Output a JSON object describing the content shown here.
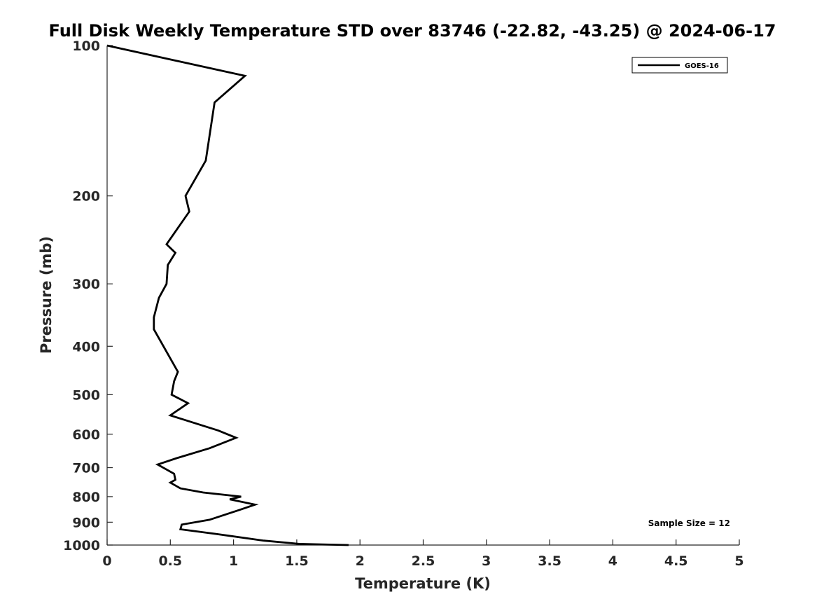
{
  "chart_data": {
    "type": "line",
    "title": "Full Disk Weekly Temperature STD over 83746 (-22.82, -43.25) @ 2024-06-17",
    "xlabel": "Temperature (K)",
    "ylabel": "Pressure (mb)",
    "xlim": [
      0,
      5
    ],
    "ylim": [
      100,
      1000
    ],
    "y_scale": "log",
    "y_reversed": true,
    "x_ticks": [
      "0",
      "0.5",
      "1",
      "1.5",
      "2",
      "2.5",
      "3",
      "3.5",
      "4",
      "4.5",
      "5"
    ],
    "y_ticks": [
      "100",
      "200",
      "300",
      "400",
      "500",
      "600",
      "700",
      "800",
      "900",
      "1000"
    ],
    "grid": false,
    "legend_position": "top-right",
    "series": [
      {
        "name": "GOES-16",
        "color": "#000000",
        "x": [
          0.0,
          1.09,
          0.85,
          0.78,
          0.62,
          0.65,
          0.47,
          0.54,
          0.48,
          0.47,
          0.41,
          0.37,
          0.37,
          0.56,
          0.53,
          0.51,
          0.64,
          0.5,
          0.88,
          1.02,
          0.81,
          0.55,
          0.4,
          0.53,
          0.54,
          0.5,
          0.58,
          0.76,
          1.06,
          0.97,
          1.17,
          1.05,
          0.81,
          0.59,
          0.58,
          0.86,
          1.24,
          1.52,
          1.91
        ],
        "y": [
          100,
          115,
          130,
          170,
          200,
          215,
          250,
          260,
          275,
          300,
          320,
          350,
          370,
          450,
          470,
          500,
          520,
          550,
          590,
          610,
          640,
          670,
          690,
          720,
          740,
          750,
          770,
          785,
          800,
          810,
          830,
          850,
          890,
          910,
          930,
          950,
          980,
          995,
          1000
        ]
      }
    ],
    "annotations": [
      "Sample Size = 12"
    ]
  }
}
